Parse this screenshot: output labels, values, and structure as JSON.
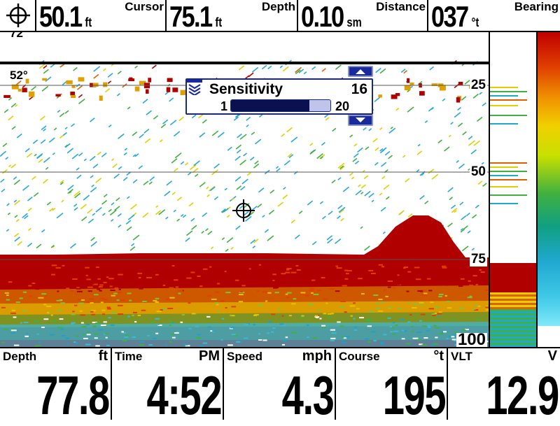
{
  "topbar": {
    "cursor_icon": "crosshair-icon",
    "cursor": {
      "value": "50.1",
      "unit": "ft",
      "label": "Cursor"
    },
    "depth": {
      "value": "75.1",
      "unit": "ft",
      "label": "Depth"
    },
    "distance": {
      "value": "0.10",
      "unit": "sm",
      "label": "Distance"
    },
    "bearing": {
      "value": "037",
      "unit": "°t",
      "label": "Bearing"
    }
  },
  "sonar": {
    "top_scale": "72",
    "temperature": "52°",
    "depth_marks": [
      "25",
      "50",
      "75",
      "100"
    ]
  },
  "sensitivity": {
    "title": "Sensitivity",
    "value": 16,
    "min": 1,
    "max": 20,
    "value_text": "16",
    "min_text": "1",
    "max_text": "20"
  },
  "colors": {
    "strong": "#b00000",
    "medium": "#f0d000",
    "weak": "#28a8d8",
    "popup_border": "#1a2a7a"
  },
  "bottombar": [
    {
      "label": "Depth",
      "unit": "ft",
      "value": "77.8"
    },
    {
      "label": "Time",
      "unit": "PM",
      "value": "4:52"
    },
    {
      "label": "Speed",
      "unit": "mph",
      "value": "4.3"
    },
    {
      "label": "Course",
      "unit": "°t",
      "value": "195"
    },
    {
      "label": "VLT",
      "unit": "V",
      "value": "12.9"
    }
  ]
}
